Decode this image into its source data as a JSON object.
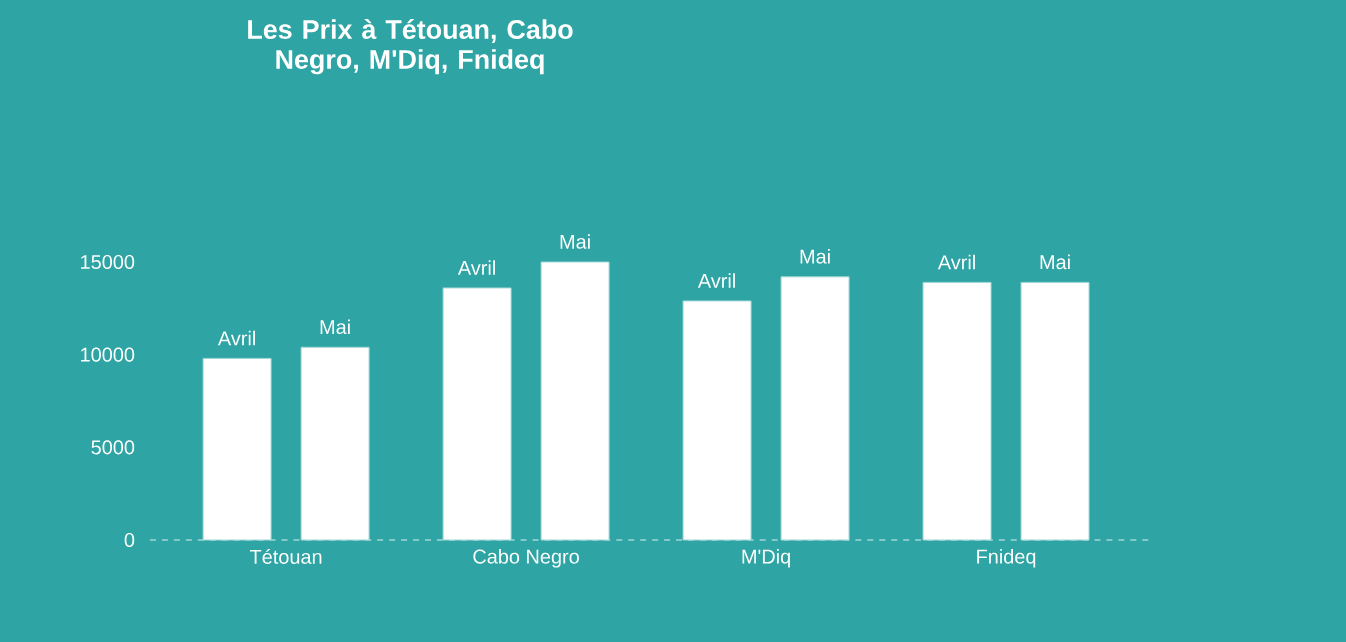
{
  "chart_data": {
    "type": "bar",
    "title": "Les Prix à Tétouan, Cabo Negro, M'Diq, Fnideq",
    "categories": [
      "Tétouan",
      "Cabo Negro",
      "M'Diq",
      "Fnideq"
    ],
    "series": [
      {
        "name": "Avril",
        "color": "#ffffff",
        "values": [
          9800,
          13600,
          12900,
          13900
        ]
      },
      {
        "name": "Mai",
        "color": "#ffffff",
        "values": [
          10400,
          15000,
          14200,
          13900
        ]
      }
    ],
    "ylim": [
      0,
      15000
    ],
    "yticks": [
      0,
      5000,
      10000,
      15000
    ]
  }
}
